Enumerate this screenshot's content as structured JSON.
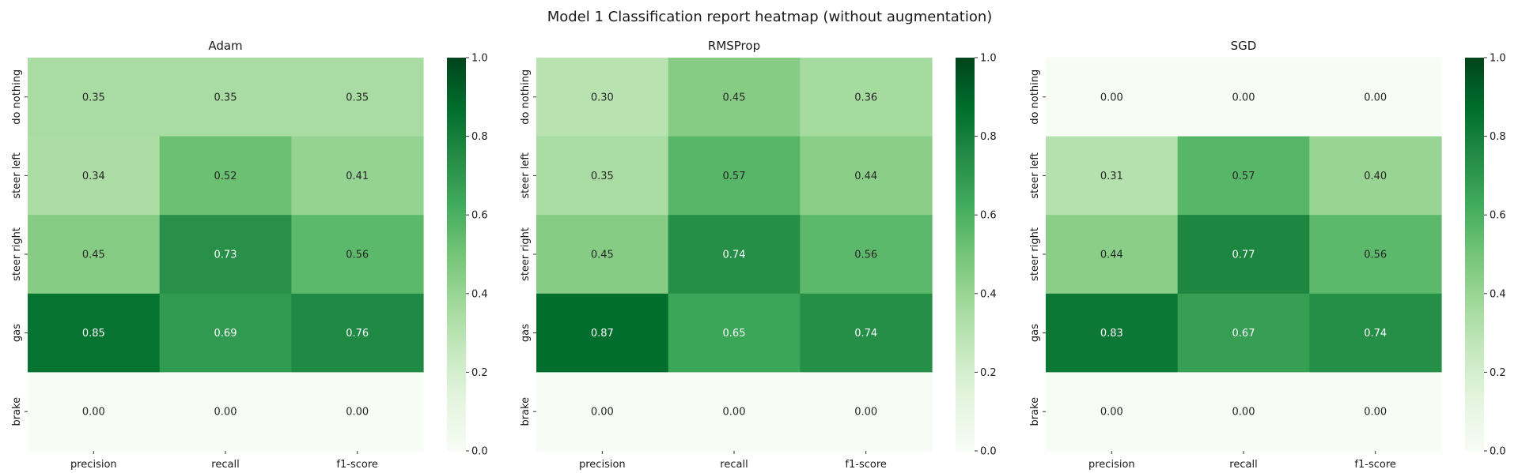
{
  "suptitle": "Model 1 Classification report heatmap (without augmentation)",
  "colorbar": {
    "ticks": [
      "0.0",
      "0.2",
      "0.4",
      "0.6",
      "0.8",
      "1.0"
    ],
    "colormap": "Greens",
    "vmin": 0,
    "vmax": 1
  },
  "chart_data": [
    {
      "type": "heatmap",
      "title": "Adam",
      "x_categories": [
        "precision",
        "recall",
        "f1-score"
      ],
      "y_categories": [
        "do nothing",
        "steer left",
        "steer right",
        "gas",
        "brake"
      ],
      "values": [
        [
          0.35,
          0.35,
          0.35
        ],
        [
          0.34,
          0.52,
          0.41
        ],
        [
          0.45,
          0.73,
          0.56
        ],
        [
          0.85,
          0.69,
          0.76
        ],
        [
          0.0,
          0.0,
          0.0
        ]
      ],
      "labels": [
        [
          "0.35",
          "0.35",
          "0.35"
        ],
        [
          "0.34",
          "0.52",
          "0.41"
        ],
        [
          "0.45",
          "0.73",
          "0.56"
        ],
        [
          "0.85",
          "0.69",
          "0.76"
        ],
        [
          "0.00",
          "0.00",
          "0.00"
        ]
      ],
      "vlim": [
        0,
        1
      ]
    },
    {
      "type": "heatmap",
      "title": "RMSProp",
      "x_categories": [
        "precision",
        "recall",
        "f1-score"
      ],
      "y_categories": [
        "do nothing",
        "steer left",
        "steer right",
        "gas",
        "brake"
      ],
      "values": [
        [
          0.3,
          0.45,
          0.36
        ],
        [
          0.35,
          0.57,
          0.44
        ],
        [
          0.45,
          0.74,
          0.56
        ],
        [
          0.87,
          0.65,
          0.74
        ],
        [
          0.0,
          0.0,
          0.0
        ]
      ],
      "labels": [
        [
          "0.30",
          "0.45",
          "0.36"
        ],
        [
          "0.35",
          "0.57",
          "0.44"
        ],
        [
          "0.45",
          "0.74",
          "0.56"
        ],
        [
          "0.87",
          "0.65",
          "0.74"
        ],
        [
          "0.00",
          "0.00",
          "0.00"
        ]
      ],
      "vlim": [
        0,
        1
      ]
    },
    {
      "type": "heatmap",
      "title": "SGD",
      "x_categories": [
        "precision",
        "recall",
        "f1-score"
      ],
      "y_categories": [
        "do nothing",
        "steer left",
        "steer right",
        "gas",
        "brake"
      ],
      "values": [
        [
          0.0,
          0.0,
          0.0
        ],
        [
          0.31,
          0.57,
          0.4
        ],
        [
          0.44,
          0.77,
          0.56
        ],
        [
          0.83,
          0.67,
          0.74
        ],
        [
          0.0,
          0.0,
          0.0
        ]
      ],
      "labels": [
        [
          "0.00",
          "0.00",
          "0.00"
        ],
        [
          "0.31",
          "0.57",
          "0.40"
        ],
        [
          "0.44",
          "0.77",
          "0.56"
        ],
        [
          "0.83",
          "0.67",
          "0.74"
        ],
        [
          "0.00",
          "0.00",
          "0.00"
        ]
      ],
      "vlim": [
        0,
        1
      ]
    }
  ]
}
